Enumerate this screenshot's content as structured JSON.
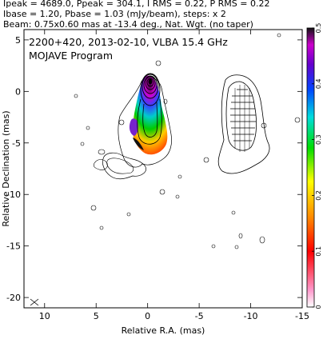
{
  "chart_data": {
    "type": "heatmap",
    "header_lines": [
      "Ipeak = 4689.0, Ppeak = 304.1, I RMS = 0.22, P RMS = 0.22",
      "Ibase = 1.20, Pbase = 1.03 (mJy/beam), steps: x 2",
      "Beam: 0.75x0.60 mas at -13.4 deg., Nat. Wgt. (no taper)"
    ],
    "title": "2200+420, 2013-02-10, VLBA 15.4 GHz",
    "subtitle": "MOJAVE Program",
    "xlabel": "Relative R.A. (mas)",
    "ylabel": "Relative Declination (mas)",
    "xlim": [
      12,
      -15
    ],
    "ylim": [
      -21,
      6
    ],
    "x_ticks": [
      10,
      5,
      0,
      -5,
      -10,
      -15
    ],
    "y_ticks": [
      5,
      0,
      -5,
      -10,
      -15,
      -20
    ],
    "colorbar": {
      "ticks": [
        0,
        0.1,
        0.2,
        0.3,
        0.4,
        0.5
      ],
      "lim": [
        0,
        0.5
      ],
      "colors": [
        "#ffffff",
        "#ff99cc",
        "#ff0000",
        "#ff8800",
        "#ffff00",
        "#00dd00",
        "#00dddd",
        "#0044ff",
        "#6600cc",
        "#cc00cc",
        "#111111"
      ]
    },
    "contours": {
      "base_mJy_per_beam": 1.2,
      "step_factor": 2,
      "core_position": [
        0,
        0
      ],
      "jet_extent_dec": [
        0.8,
        -9
      ],
      "polarization_extent_dec": [
        0.5,
        -6.2
      ]
    }
  }
}
